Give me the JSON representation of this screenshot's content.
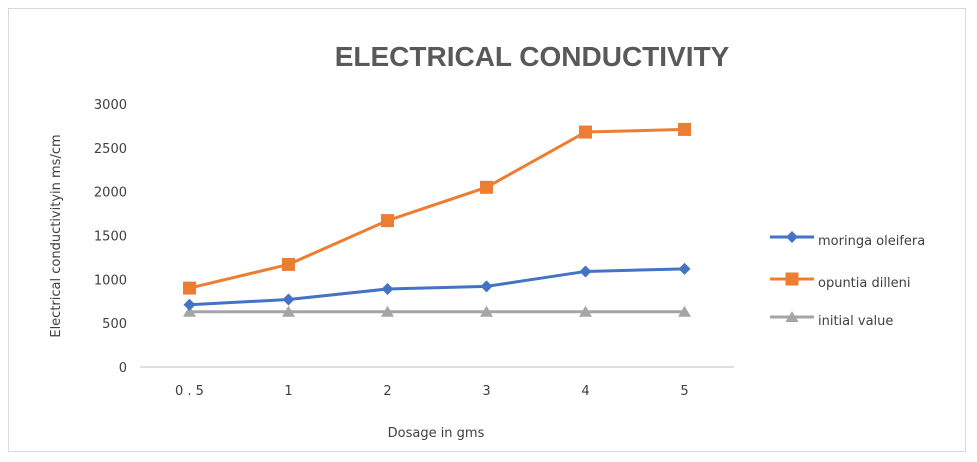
{
  "chart_data": {
    "type": "line",
    "title": "ELECTRICAL CONDUCTIVITY",
    "xlabel": "Dosage in gms",
    "ylabel": "Electrical  conductivityin ms/cm",
    "categories": [
      "0 . 5",
      "1",
      "2",
      "3",
      "4",
      "5"
    ],
    "ylim": [
      0,
      3000
    ],
    "yticks": [
      0,
      500,
      1000,
      1500,
      2000,
      2500,
      3000
    ],
    "grid": false,
    "legend_position": "right",
    "series": [
      {
        "name": "moringa oleifera",
        "values": [
          710,
          770,
          890,
          920,
          1090,
          1120
        ],
        "color": "#4472c4",
        "marker": "diamond"
      },
      {
        "name": "opuntia  dilleni",
        "values": [
          900,
          1170,
          1670,
          2050,
          2680,
          2710
        ],
        "color": "#ed7d31",
        "marker": "square"
      },
      {
        "name": "initial value",
        "values": [
          630,
          630,
          630,
          630,
          630,
          630
        ],
        "color": "#a5a5a5",
        "marker": "triangle"
      }
    ]
  }
}
